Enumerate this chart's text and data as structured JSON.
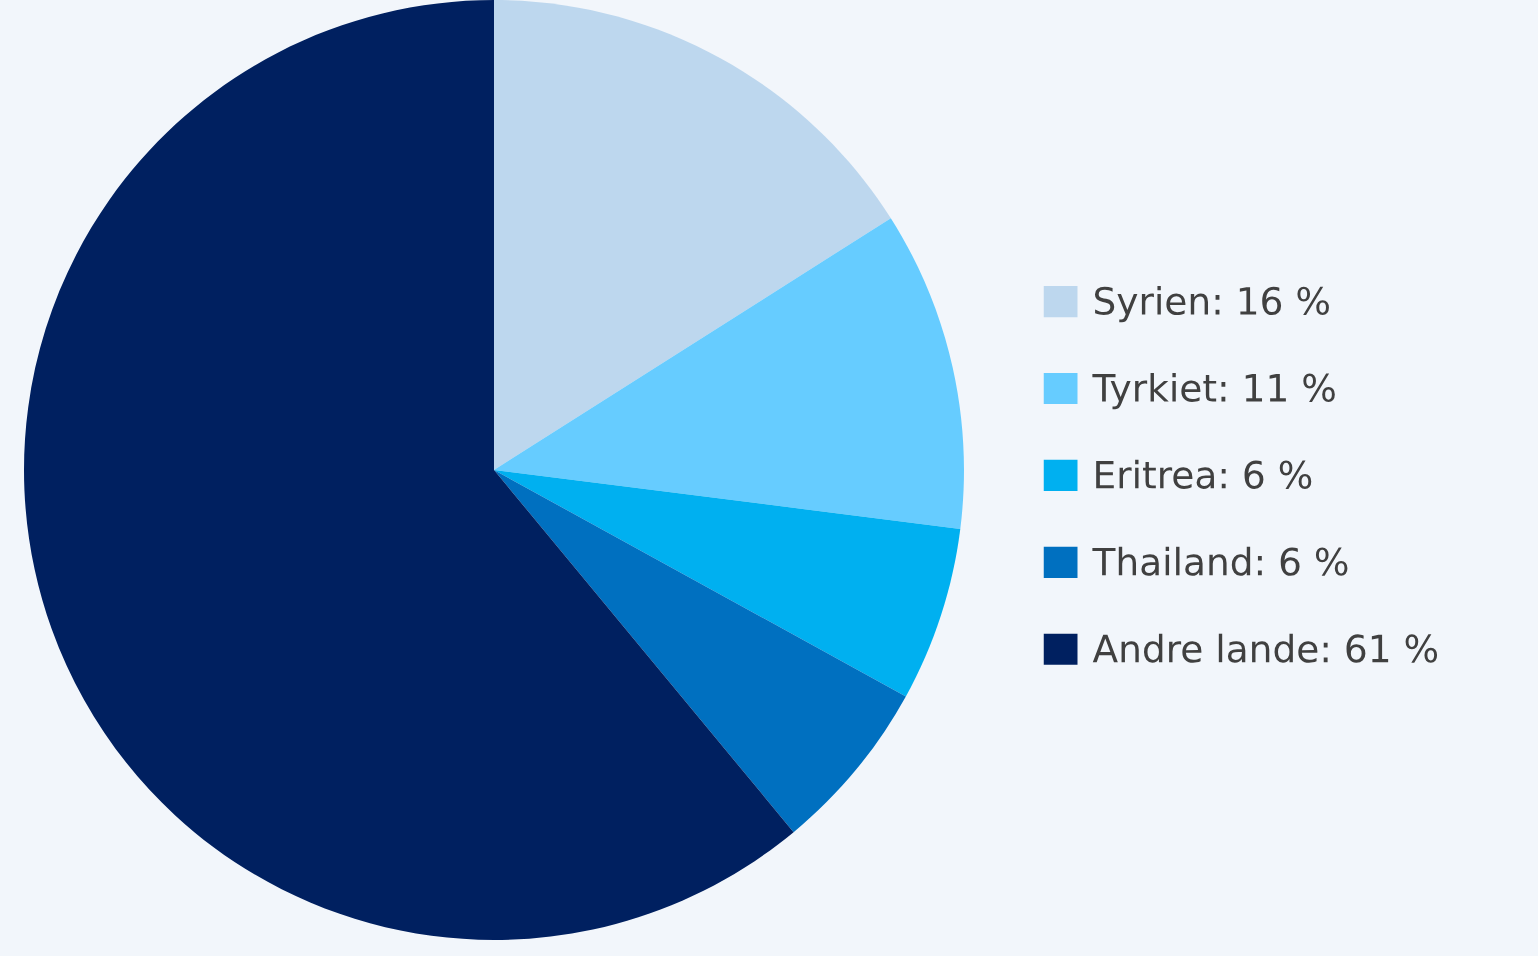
{
  "chart_data": {
    "type": "pie",
    "categories": [
      "Syrien: 16 %",
      "Tyrkiet: 11 %",
      "Eritrea: 6 %",
      "Thailand: 6 %",
      "Andre lande: 61 %"
    ],
    "values": [
      16,
      11,
      6,
      6,
      61
    ],
    "colors": [
      "#bdd7ee",
      "#66ccff",
      "#00b0f0",
      "#0070c0",
      "#002060"
    ],
    "legend": "right"
  }
}
